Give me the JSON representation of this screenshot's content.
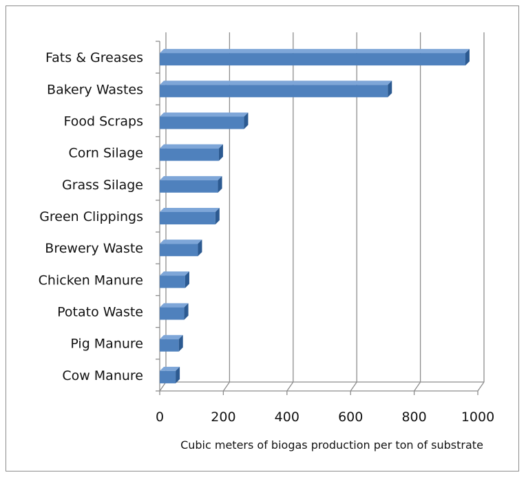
{
  "chart_data": {
    "type": "bar",
    "orientation": "horizontal",
    "style": "3d",
    "categories": [
      "Fats & Greases",
      "Bakery Wastes",
      "Food Scraps",
      "Corn Silage",
      "Grass Silage",
      "Green Clippings",
      "Brewery Waste",
      "Chicken Manure",
      "Potato Waste",
      "Pig Manure",
      "Cow Manure"
    ],
    "values": [
      961,
      717,
      265,
      186,
      183,
      175,
      120,
      80,
      77,
      60,
      50
    ],
    "xlabel": "Cubic meters of biogas production per ton of substrate",
    "ylabel": "",
    "xlim": [
      0,
      1000
    ],
    "xticks": [
      0,
      200,
      400,
      600,
      800,
      1000
    ],
    "grid": "vertical",
    "legend": "none",
    "colors": {
      "bar_front": "#4f81bd",
      "bar_top": "#7ea6d8",
      "bar_side": "#2c5a91",
      "grid": "#8c8c8c"
    }
  }
}
